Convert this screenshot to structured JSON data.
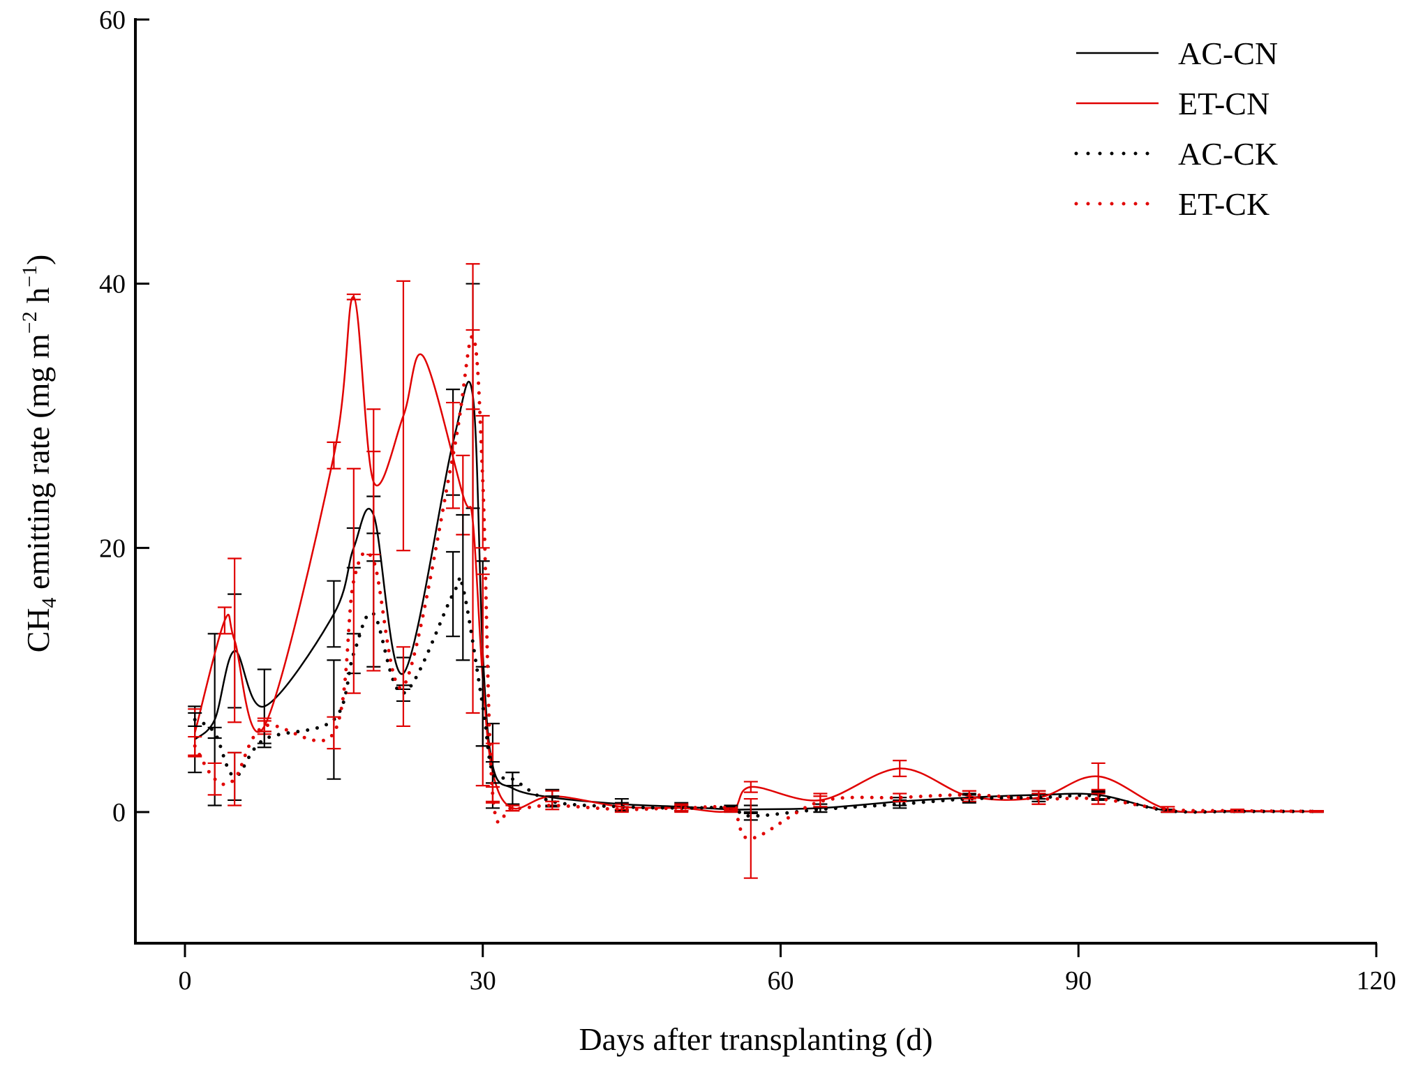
{
  "chart_data": {
    "type": "line",
    "title": "",
    "xlabel": "Days after transplanting (d)",
    "ylabel": {
      "prefix": "CH",
      "sub": "4",
      "main": " emitting rate (mg m",
      "sup1": "−2",
      "mid": " h",
      "sup2": "−1",
      "suffix": ")"
    },
    "xlim": [
      -5,
      120
    ],
    "ylim": [
      -10,
      60
    ],
    "xticks": [
      0,
      30,
      60,
      90,
      120
    ],
    "yticks": [
      0,
      20,
      40,
      60
    ],
    "legend_position": "top-right",
    "series": [
      {
        "name": "AC-CN",
        "color": "#000000",
        "style": "solid",
        "x": [
          1,
          3,
          5,
          8,
          15,
          17,
          19,
          22,
          27,
          29,
          30,
          31,
          33,
          37,
          44,
          50,
          55,
          57,
          64,
          72,
          79,
          86,
          92,
          99,
          106,
          114
        ],
        "y": [
          5.5,
          7,
          12.2,
          8,
          15,
          20,
          22.5,
          10.5,
          28,
          31.5,
          12,
          3.5,
          1.8,
          1.1,
          0.6,
          0.4,
          0.2,
          0.2,
          0.3,
          0.8,
          1.1,
          1.3,
          1.3,
          0.1,
          0.05,
          0.05
        ],
        "err": [
          2.5,
          6.5,
          4.3,
          2.8,
          2.5,
          1.5,
          1.4,
          1.2,
          4,
          8.5,
          7,
          3.2,
          1.2,
          0.6,
          0.4,
          0.3,
          0.2,
          0.3,
          0.3,
          0.3,
          0.3,
          0.3,
          0.3,
          0.1,
          0.05,
          0.05
        ]
      },
      {
        "name": "ET-CN",
        "color": "#e00000",
        "style": "solid",
        "x": [
          1,
          4,
          5,
          8,
          15,
          17,
          19,
          22,
          24,
          28,
          29,
          30,
          31,
          33,
          37,
          44,
          50,
          55,
          57,
          64,
          72,
          79,
          86,
          92,
          99,
          106,
          114
        ],
        "y": [
          6,
          14.5,
          13,
          6.5,
          27,
          39,
          25,
          30,
          34.5,
          24,
          22,
          10,
          3,
          0.3,
          1.2,
          0.4,
          0.3,
          0.1,
          1.9,
          0.9,
          3.3,
          1.2,
          1.1,
          2.7,
          0.2,
          0.1,
          0.05
        ],
        "err": [
          1.8,
          1,
          6.2,
          0.6,
          1,
          0.2,
          5.5,
          10.2,
          0,
          3,
          14.5,
          8,
          2.2,
          0.2,
          0.4,
          0.2,
          0.3,
          0.1,
          0.4,
          0.5,
          0.6,
          0.4,
          0.5,
          1,
          0.2,
          0.1,
          0.05
        ]
      },
      {
        "name": "AC-CK",
        "color": "#000000",
        "style": "dotted",
        "x": [
          1,
          3,
          5,
          8,
          15,
          17,
          19,
          22,
          27,
          28,
          30,
          31,
          33,
          37,
          44,
          50,
          55,
          57,
          64,
          72,
          79,
          86,
          92,
          99,
          106,
          114
        ],
        "y": [
          7,
          6,
          2.7,
          5.5,
          7,
          12,
          15,
          9,
          16.5,
          17,
          8,
          3,
          2.5,
          0.8,
          0.4,
          0.3,
          0.3,
          -0.3,
          0.2,
          0.6,
          1,
          1.1,
          1.2,
          0.1,
          0.05,
          0.05
        ],
        "err": [
          0.5,
          0.4,
          1.8,
          0.6,
          4.5,
          1.5,
          4,
          0.6,
          3.2,
          5.5,
          3,
          0.8,
          0.5,
          0.4,
          0.3,
          0.2,
          0.2,
          0.3,
          0.2,
          0.3,
          0.3,
          0.3,
          0.3,
          0.1,
          0.05,
          0.05
        ]
      },
      {
        "name": "ET-CK",
        "color": "#e00000",
        "style": "dotted",
        "x": [
          1,
          3,
          5,
          8,
          15,
          17,
          19,
          22,
          27,
          29,
          30,
          31,
          33,
          37,
          44,
          50,
          55,
          57,
          64,
          72,
          79,
          86,
          92,
          99,
          106,
          114
        ],
        "y": [
          5,
          2.5,
          2.5,
          6.5,
          6,
          17.5,
          19,
          9.5,
          27,
          36,
          25,
          1.3,
          0.3,
          0.5,
          0.2,
          0.3,
          0.2,
          -2,
          0.8,
          1.1,
          1.3,
          1,
          1,
          0.2,
          0.1,
          0.05
        ],
        "err": [
          0.7,
          1.2,
          2,
          0.4,
          1.2,
          8.5,
          8.3,
          3,
          4,
          5.5,
          5,
          0.6,
          0.2,
          0.3,
          0.2,
          0.2,
          0.1,
          3,
          0.4,
          0.3,
          0.3,
          0.4,
          0.4,
          0.2,
          0.1,
          0.05
        ]
      }
    ]
  }
}
